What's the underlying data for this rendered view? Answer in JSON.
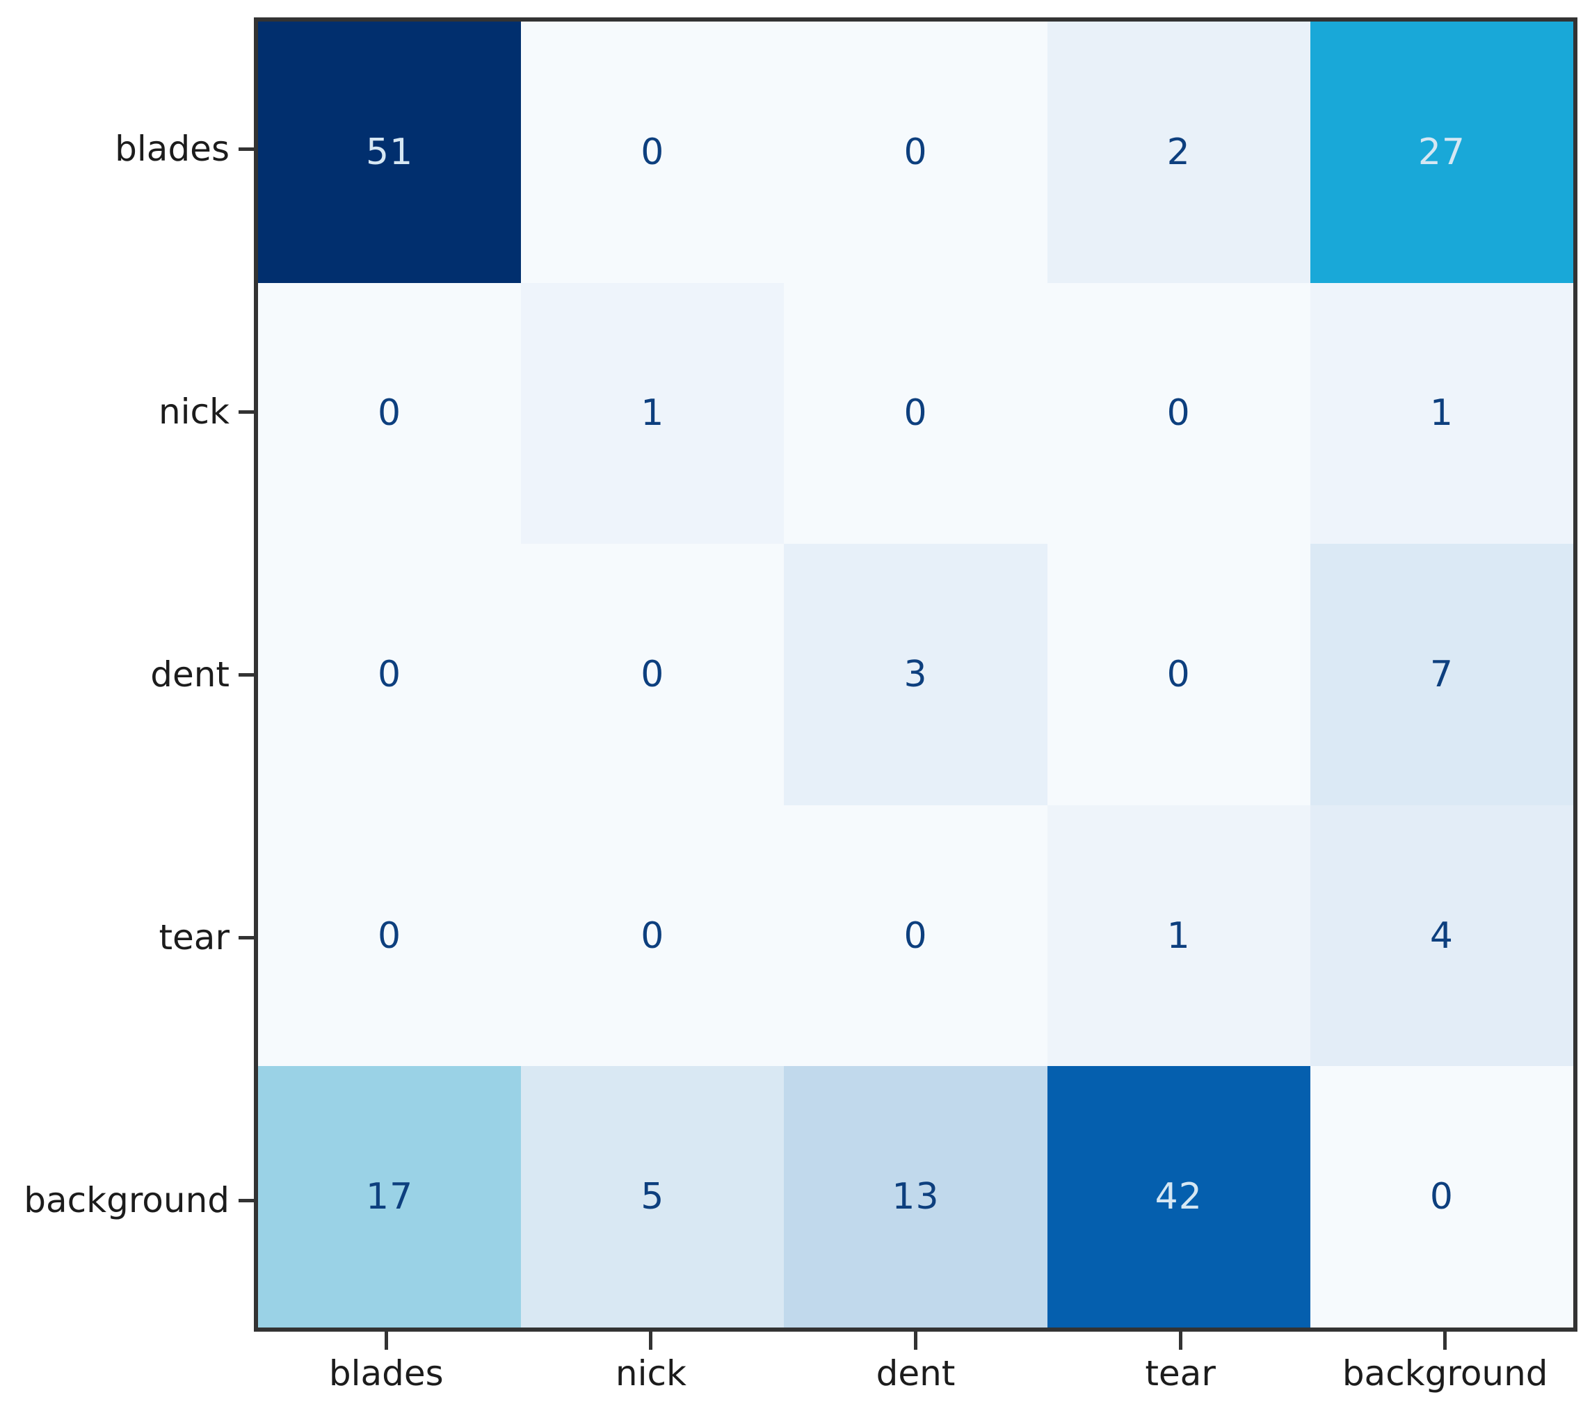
{
  "chart_data": {
    "type": "heatmap",
    "title": "",
    "xlabel": "",
    "ylabel": "",
    "legend": "none",
    "grid": false,
    "colormap": "Blues",
    "categories_x": [
      "blades",
      "nick",
      "dent",
      "tear",
      "background"
    ],
    "categories_y": [
      "blades",
      "nick",
      "dent",
      "tear",
      "background"
    ],
    "matrix": [
      [
        51,
        0,
        0,
        2,
        27
      ],
      [
        0,
        1,
        0,
        0,
        1
      ],
      [
        0,
        0,
        3,
        0,
        7
      ],
      [
        0,
        0,
        0,
        1,
        4
      ],
      [
        17,
        5,
        13,
        42,
        0
      ]
    ],
    "cell_colors": [
      [
        "#012f6e",
        "#f6fafd",
        "#f6fafd",
        "#e9f1f9",
        "#19a8d8"
      ],
      [
        "#f6fafd",
        "#eef4fb",
        "#f6fafd",
        "#f6fafd",
        "#eef4fb"
      ],
      [
        "#f6fafd",
        "#f6fafd",
        "#e7f0f9",
        "#f6fafd",
        "#dbe9f5"
      ],
      [
        "#f6fafd",
        "#f6fafd",
        "#f6fafd",
        "#eef4fa",
        "#e3edf7"
      ],
      [
        "#9ad2e6",
        "#d9e8f3",
        "#c1d9ec",
        "#055fae",
        "#f6fafd"
      ]
    ],
    "value_range": [
      0,
      51
    ],
    "text_color_on_dark": "#d6e7f3",
    "text_color_on_light": "#0d3f7e",
    "axis_color": "#333333",
    "label_color": "#1c1c1c"
  }
}
